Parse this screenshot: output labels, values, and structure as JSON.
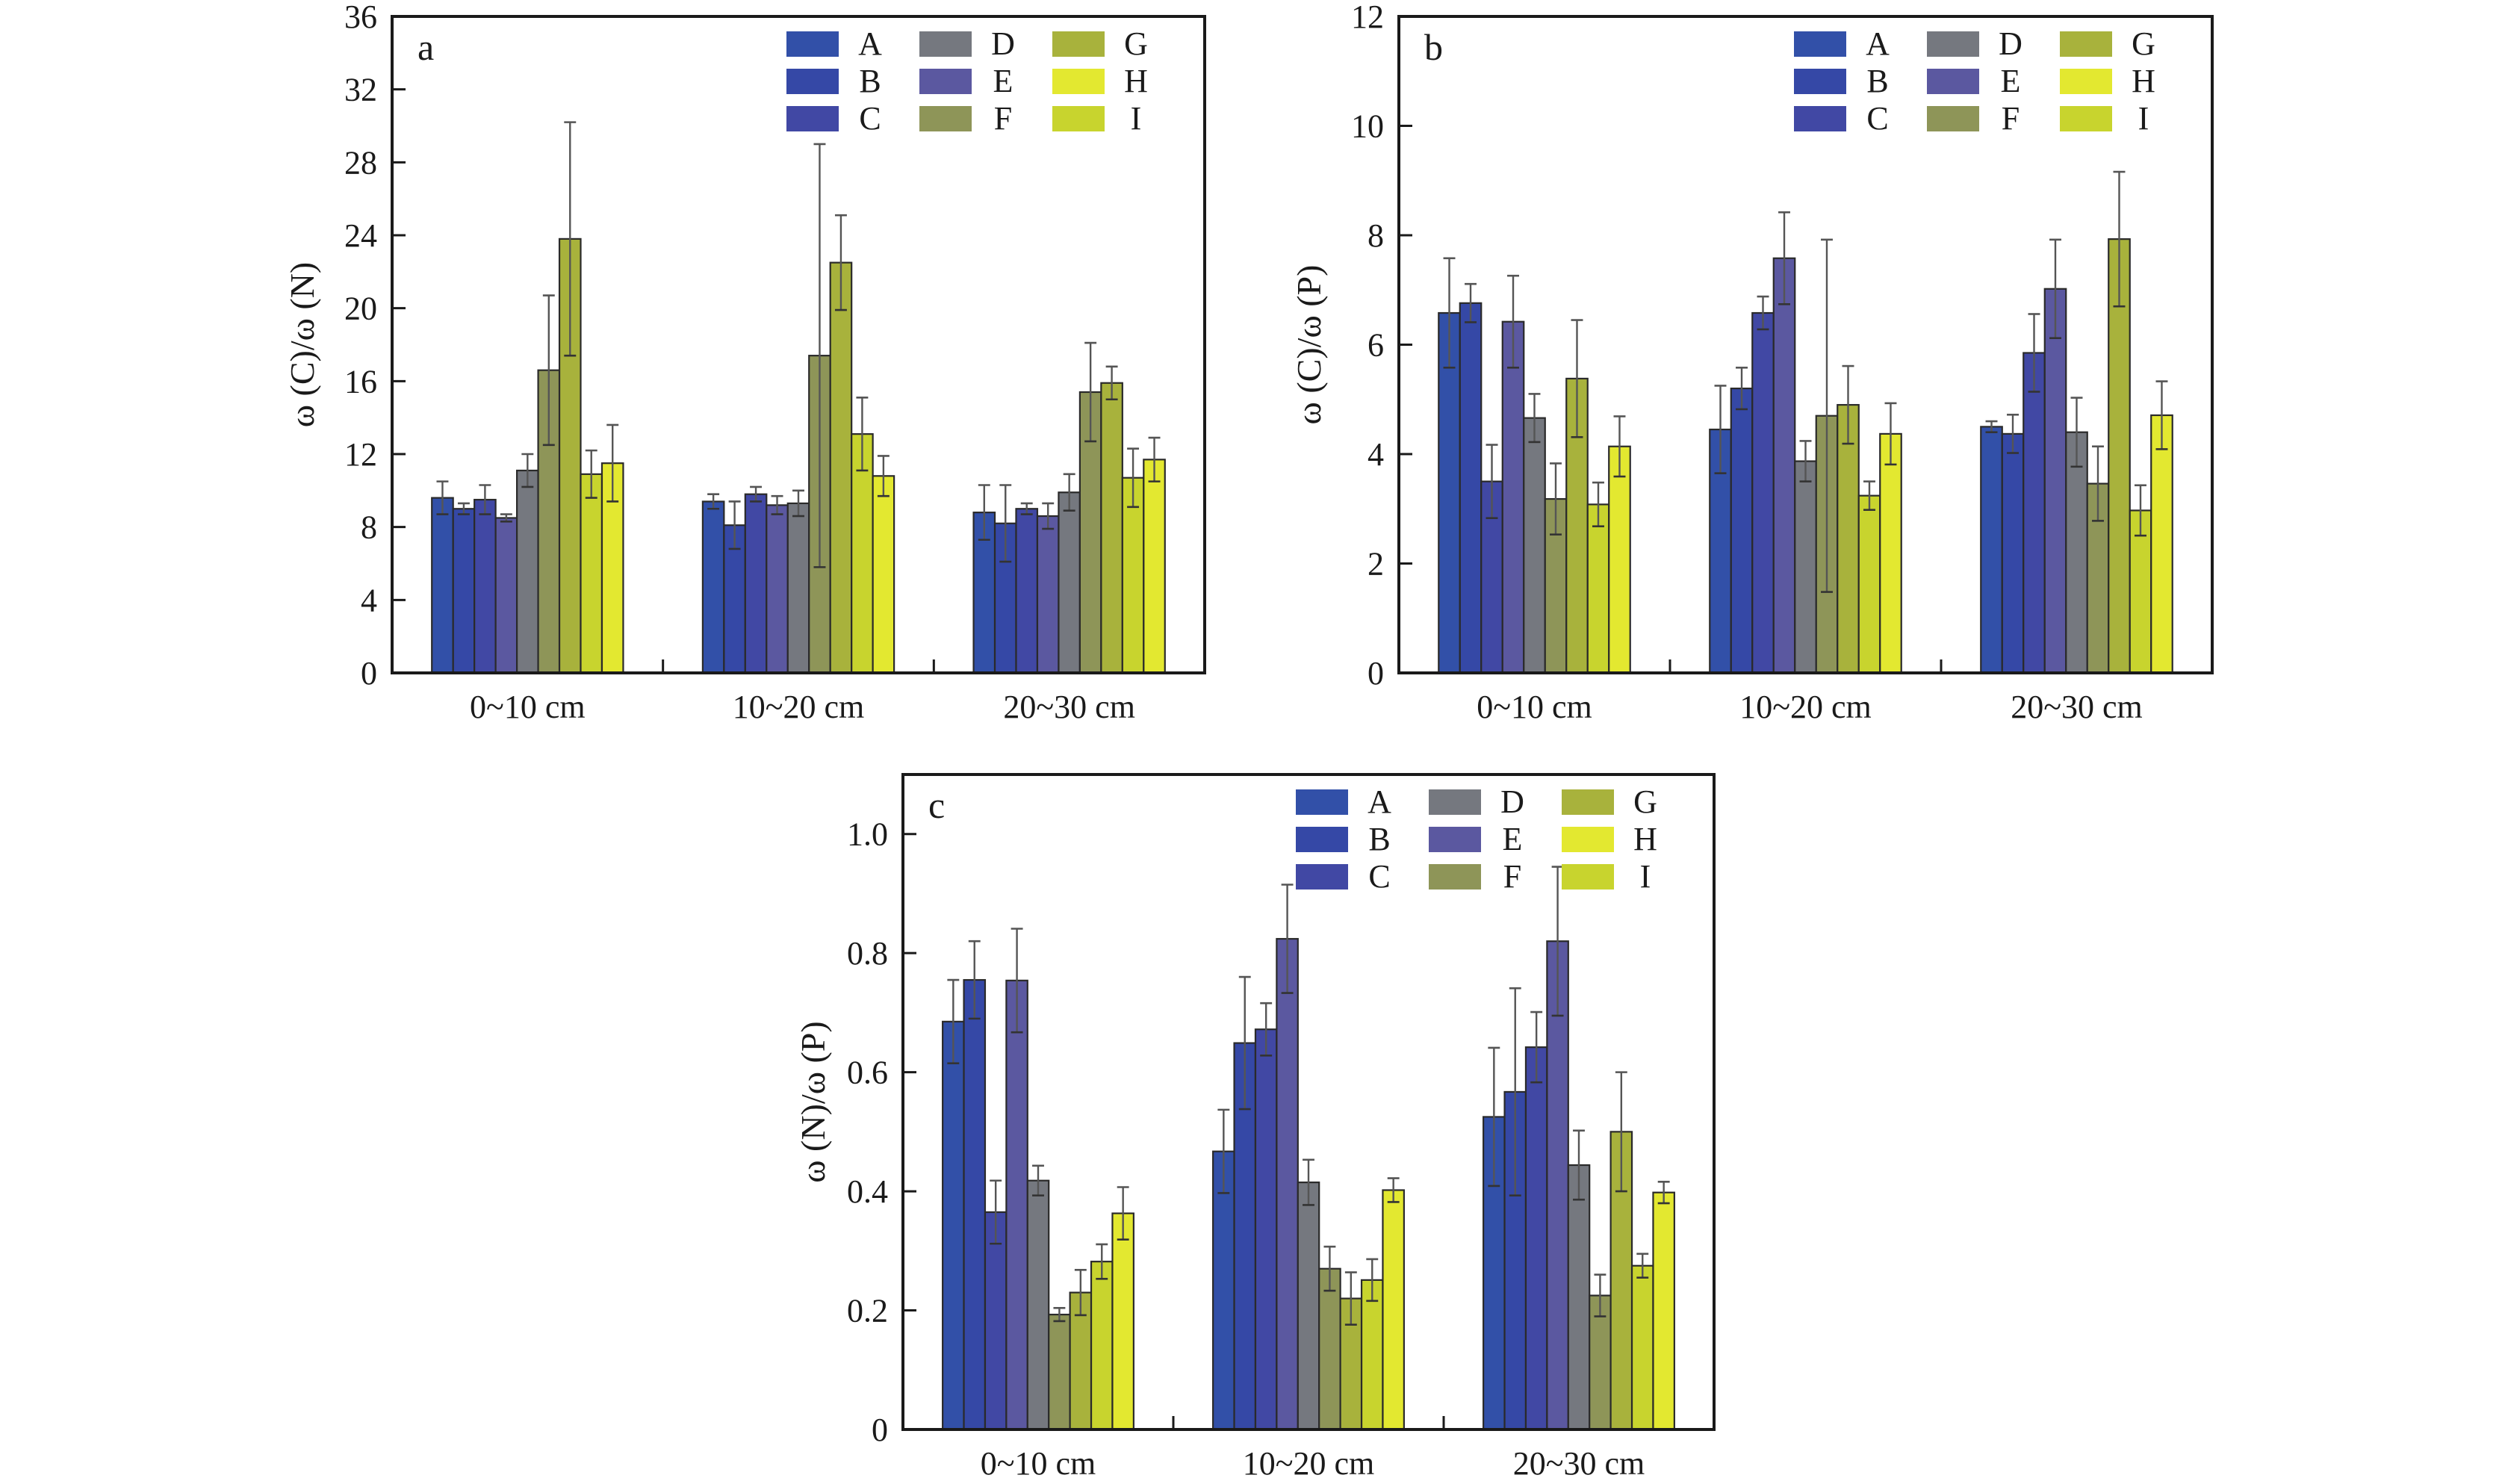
{
  "figure": {
    "panel_letters": [
      "a",
      "b",
      "c"
    ]
  },
  "series_meta": [
    {
      "key": "A",
      "color": "#3250a8"
    },
    {
      "key": "B",
      "color": "#3548a6"
    },
    {
      "key": "C",
      "color": "#4148a4"
    },
    {
      "key": "D",
      "color": "#75787f"
    },
    {
      "key": "E",
      "color": "#5b58a0"
    },
    {
      "key": "F",
      "color": "#8e9558"
    },
    {
      "key": "G",
      "color": "#a8b23c"
    },
    {
      "key": "H",
      "color": "#e3e830"
    },
    {
      "key": "I",
      "color": "#c8d42e"
    }
  ],
  "bar_order_within_group": [
    "A",
    "B",
    "C",
    "E",
    "D",
    "F",
    "G",
    "I",
    "H"
  ],
  "chart_data": [
    {
      "type": "bar",
      "panel": "a",
      "title": "",
      "xlabel": "",
      "ylabel": "ω (C)/ω (N)",
      "ylim": [
        0,
        36
      ],
      "yticks": [
        0,
        4,
        8,
        12,
        16,
        20,
        24,
        28,
        32,
        36
      ],
      "ytick_labels": [
        "0",
        "4",
        "8",
        "12",
        "16",
        "20",
        "24",
        "28",
        "32",
        "36"
      ],
      "categories": [
        "0~10 cm",
        "10~20 cm",
        "20~30 cm"
      ],
      "legend": {
        "entries": [
          "A",
          "B",
          "C",
          "D",
          "E",
          "F",
          "G",
          "H",
          "I"
        ],
        "placement": "top-right",
        "columns": 3
      },
      "grid": false,
      "series": [
        {
          "name": "A",
          "values": [
            9.6,
            9.4,
            8.8
          ],
          "errors": [
            0.9,
            0.4,
            1.5
          ]
        },
        {
          "name": "B",
          "values": [
            9.0,
            8.1,
            8.2
          ],
          "errors": [
            0.3,
            1.3,
            2.1
          ]
        },
        {
          "name": "C",
          "values": [
            9.5,
            9.8,
            9.0
          ],
          "errors": [
            0.8,
            0.4,
            0.3
          ]
        },
        {
          "name": "D",
          "values": [
            11.1,
            9.3,
            9.9
          ],
          "errors": [
            0.9,
            0.7,
            1.0
          ]
        },
        {
          "name": "E",
          "values": [
            8.5,
            9.2,
            8.6
          ],
          "errors": [
            0.2,
            0.5,
            0.7
          ]
        },
        {
          "name": "F",
          "values": [
            16.6,
            17.4,
            15.4
          ],
          "errors": [
            4.1,
            11.6,
            2.7
          ]
        },
        {
          "name": "G",
          "values": [
            23.8,
            22.5,
            15.9
          ],
          "errors": [
            6.4,
            2.6,
            0.9
          ]
        },
        {
          "name": "H",
          "values": [
            11.5,
            10.8,
            11.7
          ],
          "errors": [
            2.1,
            1.1,
            1.2
          ]
        },
        {
          "name": "I",
          "values": [
            10.9,
            13.1,
            10.7
          ],
          "errors": [
            1.3,
            2.0,
            1.6
          ]
        }
      ]
    },
    {
      "type": "bar",
      "panel": "b",
      "title": "",
      "xlabel": "",
      "ylabel": "ω (C)/ω (P)",
      "ylim": [
        0,
        12
      ],
      "yticks": [
        0,
        2,
        4,
        6,
        8,
        10,
        12
      ],
      "ytick_labels": [
        "0",
        "2",
        "4",
        "6",
        "8",
        "10",
        "12"
      ],
      "categories": [
        "0~10 cm",
        "10~20 cm",
        "20~30 cm"
      ],
      "legend": {
        "entries": [
          "A",
          "B",
          "C",
          "D",
          "E",
          "F",
          "G",
          "H",
          "I"
        ],
        "placement": "top-right",
        "columns": 3
      },
      "grid": false,
      "series": [
        {
          "name": "A",
          "values": [
            6.58,
            4.45,
            4.5
          ],
          "errors": [
            1.0,
            0.8,
            0.1
          ]
        },
        {
          "name": "B",
          "values": [
            6.76,
            5.2,
            4.37
          ],
          "errors": [
            0.35,
            0.38,
            0.35
          ]
        },
        {
          "name": "C",
          "values": [
            3.5,
            6.58,
            5.85
          ],
          "errors": [
            0.67,
            0.3,
            0.71
          ]
        },
        {
          "name": "D",
          "values": [
            4.66,
            3.87,
            4.4
          ],
          "errors": [
            0.44,
            0.37,
            0.63
          ]
        },
        {
          "name": "E",
          "values": [
            6.42,
            7.58,
            7.02
          ],
          "errors": [
            0.84,
            0.84,
            0.9
          ]
        },
        {
          "name": "F",
          "values": [
            3.18,
            4.7,
            3.46
          ],
          "errors": [
            0.65,
            3.22,
            0.68
          ]
        },
        {
          "name": "G",
          "values": [
            5.38,
            4.9,
            7.93
          ],
          "errors": [
            1.07,
            0.71,
            1.23
          ]
        },
        {
          "name": "H",
          "values": [
            4.14,
            4.37,
            4.71
          ],
          "errors": [
            0.55,
            0.56,
            0.62
          ]
        },
        {
          "name": "I",
          "values": [
            3.08,
            3.24,
            2.97
          ],
          "errors": [
            0.4,
            0.26,
            0.46
          ]
        }
      ]
    },
    {
      "type": "bar",
      "panel": "c",
      "title": "",
      "xlabel": "",
      "ylabel": "ω (N)/ω (P)",
      "ylim": [
        0,
        1.1
      ],
      "yticks": [
        0,
        0.2,
        0.4,
        0.6,
        0.8,
        1.0
      ],
      "ytick_labels": [
        "0",
        "0.2",
        "0.4",
        "0.6",
        "0.8",
        "1.0"
      ],
      "categories": [
        "0~10 cm",
        "10~20 cm",
        "20~30 cm"
      ],
      "legend": {
        "entries": [
          "A",
          "B",
          "C",
          "D",
          "E",
          "F",
          "G",
          "H",
          "I"
        ],
        "placement": "top-right",
        "columns": 3
      },
      "grid": false,
      "series": [
        {
          "name": "A",
          "values": [
            0.685,
            0.467,
            0.525
          ],
          "errors": [
            0.07,
            0.07,
            0.116
          ]
        },
        {
          "name": "B",
          "values": [
            0.755,
            0.649,
            0.567
          ],
          "errors": [
            0.065,
            0.111,
            0.174
          ]
        },
        {
          "name": "C",
          "values": [
            0.365,
            0.672,
            0.642
          ],
          "errors": [
            0.053,
            0.044,
            0.059
          ]
        },
        {
          "name": "D",
          "values": [
            0.418,
            0.415,
            0.444
          ],
          "errors": [
            0.025,
            0.038,
            0.058
          ]
        },
        {
          "name": "E",
          "values": [
            0.754,
            0.824,
            0.82
          ],
          "errors": [
            0.087,
            0.091,
            0.125
          ]
        },
        {
          "name": "F",
          "values": [
            0.193,
            0.27,
            0.225
          ],
          "errors": [
            0.011,
            0.037,
            0.035
          ]
        },
        {
          "name": "G",
          "values": [
            0.23,
            0.22,
            0.5
          ],
          "errors": [
            0.038,
            0.044,
            0.1
          ]
        },
        {
          "name": "H",
          "values": [
            0.363,
            0.402,
            0.398
          ],
          "errors": [
            0.044,
            0.02,
            0.018
          ]
        },
        {
          "name": "I",
          "values": [
            0.282,
            0.251,
            0.275
          ],
          "errors": [
            0.029,
            0.035,
            0.02
          ]
        }
      ]
    }
  ]
}
